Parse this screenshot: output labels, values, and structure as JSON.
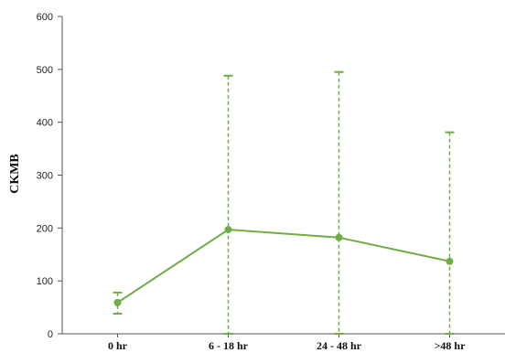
{
  "chart_data": {
    "type": "line",
    "title": "",
    "xlabel": "",
    "ylabel": "CKMB",
    "categories": [
      "0 hr",
      "6 - 18 hr",
      "24 - 48 hr",
      ">48 hr"
    ],
    "series": [
      {
        "values": [
          59,
          197,
          182,
          137
        ],
        "error_upper": [
          78,
          488,
          495,
          381
        ],
        "error_lower": [
          38,
          0,
          0,
          0
        ]
      }
    ],
    "ylim": [
      0,
      600
    ],
    "yticks": [
      0,
      100,
      200,
      300,
      400,
      500,
      600
    ],
    "grid": false,
    "legend": "none",
    "colors": {
      "series": "#70ad47",
      "axis": "#555555"
    }
  }
}
